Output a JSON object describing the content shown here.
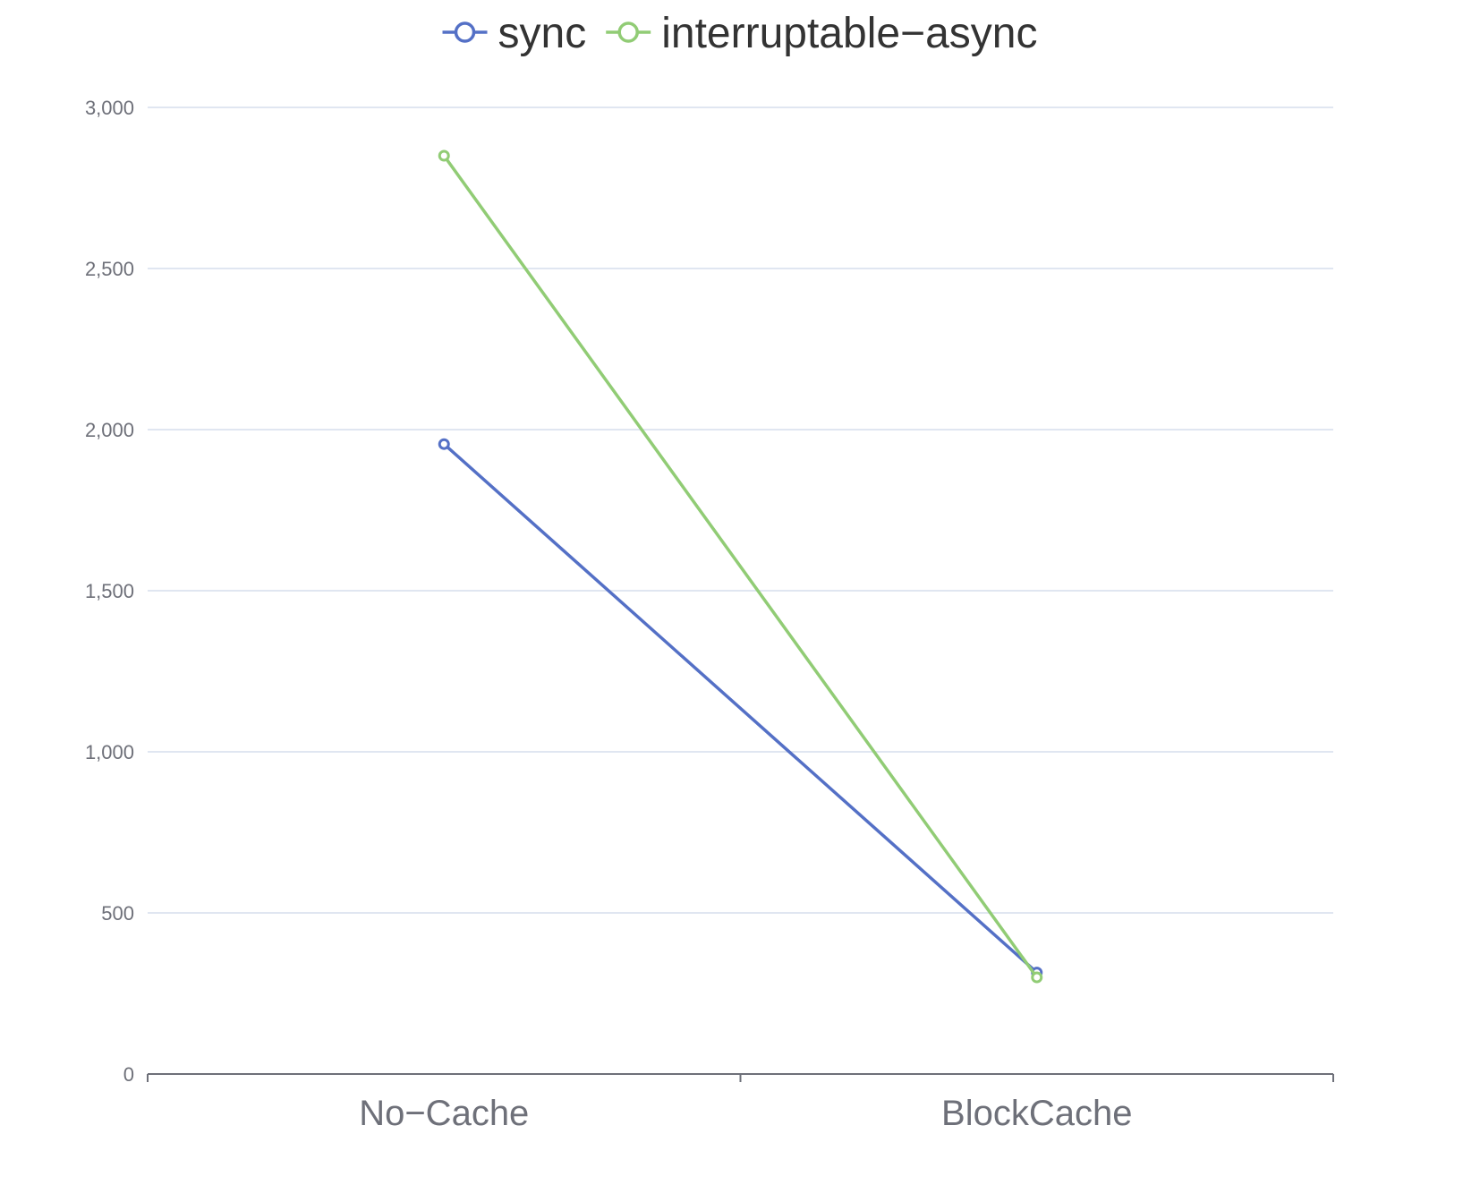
{
  "chart_data": {
    "type": "line",
    "title": "",
    "xlabel": "",
    "ylabel": "",
    "categories": [
      "No−Cache",
      "BlockCache"
    ],
    "yticks": [
      "0",
      "500",
      "1,000",
      "1,500",
      "2,000",
      "2,500",
      "3,000"
    ],
    "ylim": [
      0,
      3000
    ],
    "grid": true,
    "legend_position": "top-center",
    "series": [
      {
        "name": "sync",
        "color": "#5470c6",
        "values": [
          1955,
          315
        ]
      },
      {
        "name": "interruptable−async",
        "color": "#91cc75",
        "values": [
          2850,
          300
        ]
      }
    ]
  }
}
